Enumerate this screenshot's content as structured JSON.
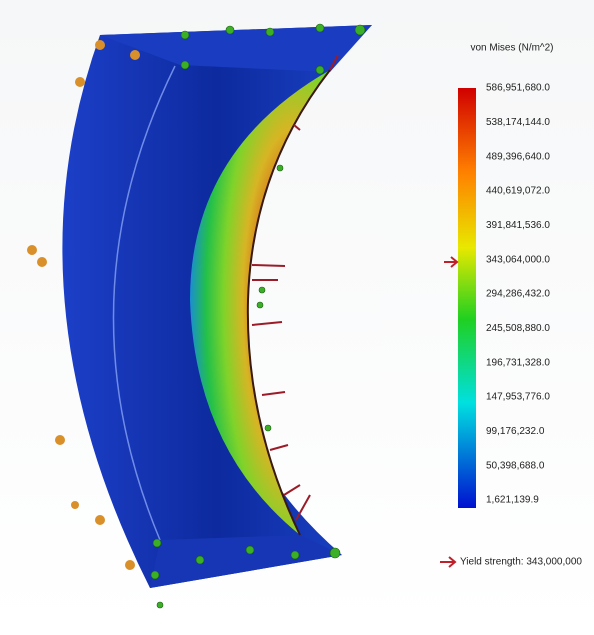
{
  "legend": {
    "title": "von Mises (N/m^2)",
    "labels": [
      "586,951,680.0",
      "538,174,144.0",
      "489,396,640.0",
      "440,619,072.0",
      "391,841,536.0",
      "343,064,000.0",
      "294,286,432.0",
      "245,508,880.0",
      "196,731,328.0",
      "147,953,776.0",
      "99,176,232.0",
      "50,398,688.0",
      "1,621,139.9"
    ],
    "yield_label": "Yield strength: 343,000,000"
  }
}
